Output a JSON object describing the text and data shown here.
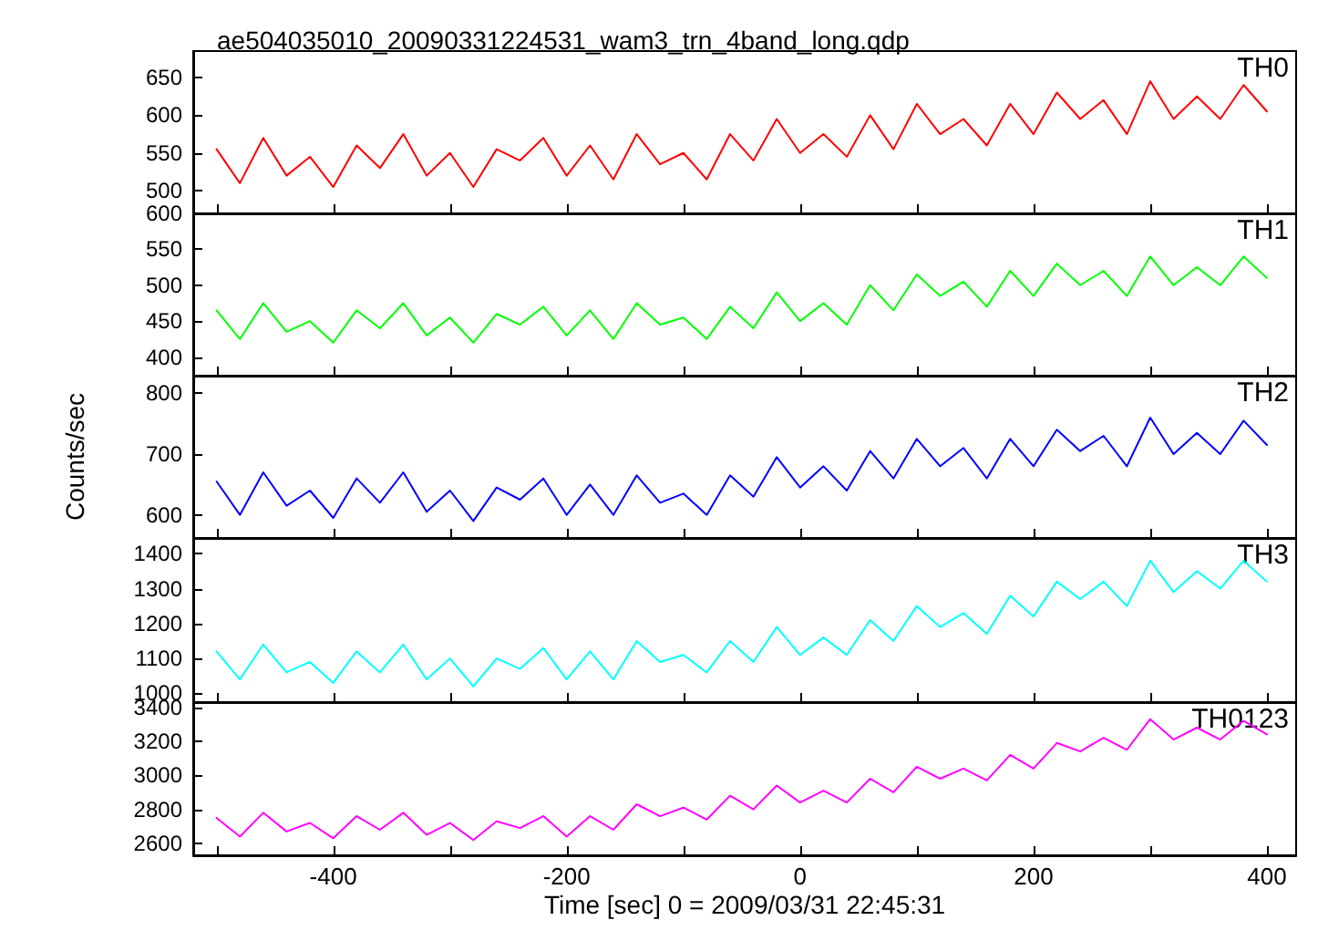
{
  "chart_data": [
    {
      "type": "line",
      "title": "ae504035010_20090331224531_wam3_trn_4band_long.qdp",
      "x": [
        -500,
        -480,
        -460,
        -440,
        -420,
        -400,
        -380,
        -360,
        -340,
        -320,
        -300,
        -280,
        -260,
        -240,
        -220,
        -200,
        -180,
        -160,
        -140,
        -120,
        -100,
        -80,
        -60,
        -40,
        -20,
        0,
        20,
        40,
        60,
        80,
        100,
        120,
        140,
        160,
        180,
        200,
        220,
        240,
        260,
        280,
        300,
        320,
        340,
        360,
        380,
        400
      ],
      "xlim": [
        -520,
        425
      ],
      "xticks": [
        {
          "value": -500,
          "label": null
        },
        -400,
        {
          "value": -300,
          "label": null
        },
        -200,
        {
          "value": -100,
          "label": null
        },
        0,
        {
          "value": 100,
          "label": null
        },
        200,
        {
          "value": 300,
          "label": null
        },
        400
      ],
      "ylim": [
        470,
        685
      ],
      "yticks": [
        500,
        550,
        600,
        650
      ],
      "tick_labels": "y",
      "line_style": "solid",
      "series": [
        {
          "name": "TH0",
          "color": "#ff0000",
          "values": [
            555,
            510,
            570,
            520,
            545,
            505,
            560,
            530,
            575,
            520,
            550,
            505,
            555,
            540,
            570,
            520,
            560,
            515,
            575,
            535,
            550,
            515,
            575,
            540,
            595,
            550,
            575,
            545,
            600,
            555,
            615,
            575,
            595,
            560,
            615,
            575,
            630,
            595,
            620,
            575,
            645,
            595,
            625,
            595,
            640,
            605
          ]
        }
      ]
    },
    {
      "type": "line",
      "x": [
        -500,
        -480,
        -460,
        -440,
        -420,
        -400,
        -380,
        -360,
        -340,
        -320,
        -300,
        -280,
        -260,
        -240,
        -220,
        -200,
        -180,
        -160,
        -140,
        -120,
        -100,
        -80,
        -60,
        -40,
        -20,
        0,
        20,
        40,
        60,
        80,
        100,
        120,
        140,
        160,
        180,
        200,
        220,
        240,
        260,
        280,
        300,
        320,
        340,
        360,
        380,
        400
      ],
      "xlim": [
        -520,
        425
      ],
      "xticks": [
        {
          "value": -500,
          "label": null
        },
        -400,
        {
          "value": -300,
          "label": null
        },
        -200,
        {
          "value": -100,
          "label": null
        },
        0,
        {
          "value": 100,
          "label": null
        },
        200,
        {
          "value": 300,
          "label": null
        },
        400
      ],
      "ylim": [
        374,
        600
      ],
      "yticks": [
        400,
        450,
        500,
        550,
        600
      ],
      "tick_labels": "y",
      "line_style": "solid",
      "series": [
        {
          "name": "TH1",
          "color": "#00ff00",
          "values": [
            465,
            425,
            475,
            435,
            450,
            420,
            465,
            440,
            475,
            430,
            455,
            420,
            460,
            445,
            470,
            430,
            465,
            425,
            475,
            445,
            455,
            425,
            470,
            440,
            490,
            450,
            475,
            445,
            500,
            465,
            515,
            485,
            505,
            470,
            520,
            485,
            530,
            500,
            520,
            485,
            540,
            500,
            525,
            500,
            540,
            510
          ]
        }
      ]
    },
    {
      "type": "line",
      "ylabel": "Counts/sec",
      "x": [
        -500,
        -480,
        -460,
        -440,
        -420,
        -400,
        -380,
        -360,
        -340,
        -320,
        -300,
        -280,
        -260,
        -240,
        -220,
        -200,
        -180,
        -160,
        -140,
        -120,
        -100,
        -80,
        -60,
        -40,
        -20,
        0,
        20,
        40,
        60,
        80,
        100,
        120,
        140,
        160,
        180,
        200,
        220,
        240,
        260,
        280,
        300,
        320,
        340,
        360,
        380,
        400
      ],
      "xlim": [
        -520,
        425
      ],
      "xticks": [
        {
          "value": -500,
          "label": null
        },
        -400,
        {
          "value": -300,
          "label": null
        },
        -200,
        {
          "value": -100,
          "label": null
        },
        0,
        {
          "value": 100,
          "label": null
        },
        200,
        {
          "value": 300,
          "label": null
        },
        400
      ],
      "ylim": [
        562,
        829
      ],
      "yticks": [
        600,
        700,
        800
      ],
      "tick_labels": "y",
      "line_style": "solid",
      "series": [
        {
          "name": "TH2",
          "color": "#0000ff",
          "values": [
            655,
            600,
            670,
            615,
            640,
            595,
            660,
            620,
            670,
            605,
            640,
            590,
            645,
            625,
            660,
            600,
            650,
            600,
            665,
            620,
            635,
            600,
            665,
            630,
            695,
            645,
            680,
            640,
            705,
            660,
            725,
            680,
            710,
            660,
            725,
            680,
            740,
            705,
            730,
            680,
            760,
            700,
            735,
            700,
            755,
            715
          ]
        }
      ]
    },
    {
      "type": "line",
      "x": [
        -500,
        -480,
        -460,
        -440,
        -420,
        -400,
        -380,
        -360,
        -340,
        -320,
        -300,
        -280,
        -260,
        -240,
        -220,
        -200,
        -180,
        -160,
        -140,
        -120,
        -100,
        -80,
        -60,
        -40,
        -20,
        0,
        20,
        40,
        60,
        80,
        100,
        120,
        140,
        160,
        180,
        200,
        220,
        240,
        260,
        280,
        300,
        320,
        340,
        360,
        380,
        400
      ],
      "xlim": [
        -520,
        425
      ],
      "xticks": [
        {
          "value": -500,
          "label": null
        },
        -400,
        {
          "value": -300,
          "label": null
        },
        -200,
        {
          "value": -100,
          "label": null
        },
        0,
        {
          "value": 100,
          "label": null
        },
        200,
        {
          "value": 300,
          "label": null
        },
        400
      ],
      "ylim": [
        975,
        1445
      ],
      "yticks": [
        1000,
        1100,
        1200,
        1300,
        1400
      ],
      "tick_labels": "y",
      "line_style": "solid",
      "series": [
        {
          "name": "TH3",
          "color": "#00ffff",
          "values": [
            1120,
            1040,
            1140,
            1060,
            1090,
            1030,
            1120,
            1060,
            1140,
            1040,
            1100,
            1020,
            1100,
            1070,
            1130,
            1040,
            1120,
            1040,
            1150,
            1090,
            1110,
            1060,
            1150,
            1090,
            1190,
            1110,
            1160,
            1110,
            1210,
            1150,
            1250,
            1190,
            1230,
            1170,
            1280,
            1220,
            1320,
            1270,
            1320,
            1250,
            1380,
            1290,
            1350,
            1300,
            1380,
            1320
          ]
        }
      ]
    },
    {
      "type": "line",
      "xlabel": "Time [sec] 0 = 2009/03/31 22:45:31",
      "x": [
        -500,
        -480,
        -460,
        -440,
        -420,
        -400,
        -380,
        -360,
        -340,
        -320,
        -300,
        -280,
        -260,
        -240,
        -220,
        -200,
        -180,
        -160,
        -140,
        -120,
        -100,
        -80,
        -60,
        -40,
        -20,
        0,
        20,
        40,
        60,
        80,
        100,
        120,
        140,
        160,
        180,
        200,
        220,
        240,
        260,
        280,
        300,
        320,
        340,
        360,
        380,
        400
      ],
      "xlim": [
        -520,
        425
      ],
      "xticks": [
        {
          "value": -500,
          "label": null
        },
        -400,
        {
          "value": -300,
          "label": null
        },
        -200,
        {
          "value": -100,
          "label": null
        },
        0,
        {
          "value": 100,
          "label": null
        },
        200,
        {
          "value": 300,
          "label": null
        },
        400
      ],
      "ylim": [
        2530,
        3430
      ],
      "yticks": [
        2600,
        2800,
        3000,
        3200,
        3400
      ],
      "line_style": "solid",
      "series": [
        {
          "name": "TH0123",
          "color": "#ff00ff",
          "values": [
            2750,
            2640,
            2780,
            2670,
            2720,
            2630,
            2760,
            2680,
            2780,
            2650,
            2720,
            2620,
            2730,
            2690,
            2760,
            2640,
            2760,
            2680,
            2830,
            2760,
            2810,
            2740,
            2880,
            2800,
            2940,
            2840,
            2910,
            2840,
            2980,
            2900,
            3050,
            2980,
            3040,
            2970,
            3120,
            3040,
            3190,
            3140,
            3220,
            3150,
            3330,
            3210,
            3280,
            3210,
            3320,
            3240
          ]
        }
      ]
    }
  ]
}
